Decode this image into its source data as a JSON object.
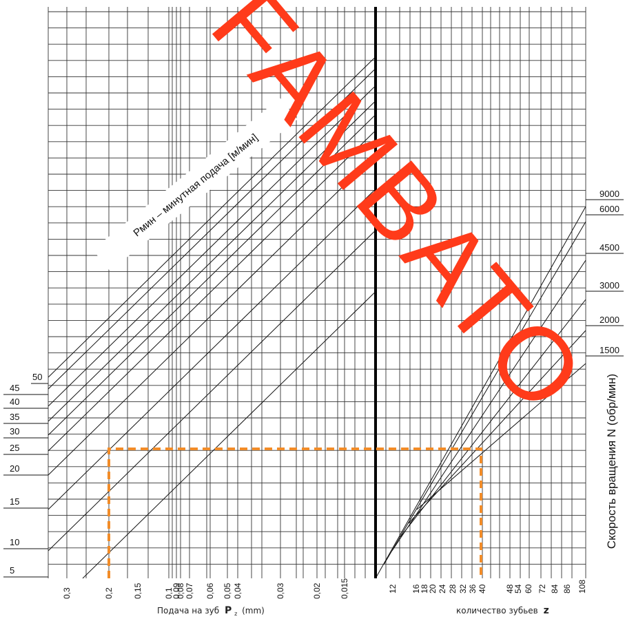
{
  "chart_data": {
    "type": "nomogram",
    "left_scale_label": "Рмин – минутная подача [м/мин]",
    "left_scale_values": [
      "5",
      "10",
      "15",
      "20",
      "25",
      "30",
      "35",
      "40",
      "45",
      "50"
    ],
    "feed_axis": {
      "title_prefix": "Подача на зуб",
      "title_bold": "P",
      "title_sub": "z",
      "title_unit": "(mm)",
      "ticks": [
        "0,3",
        "0,2",
        "0,15",
        "0,1",
        "0,09",
        "0,08",
        "0,07",
        "0,06",
        "0,05",
        "0,04",
        "0,03",
        "0,02",
        "0,015"
      ]
    },
    "teeth_axis": {
      "title": "количество зубьев",
      "title_bold": "z",
      "ticks": [
        "12",
        "16",
        "18",
        "20",
        "24",
        "28",
        "32",
        "36",
        "40",
        "48",
        "54",
        "60",
        "72",
        "84",
        "86",
        "108"
      ]
    },
    "rpm_axis": {
      "title": "Скорость вращения N (обр/мин)",
      "values": [
        "1500",
        "2000",
        "3000",
        "4500",
        "6000",
        "9000"
      ]
    },
    "example_path": {
      "feed_per_tooth": "0,2",
      "teeth": "36",
      "minute_feed_level": "28"
    },
    "watermark": "FAMBATO",
    "colors": {
      "grid": "#333333",
      "divider": "#000000",
      "example": "#f28c28",
      "watermark": "#ff3b1a"
    }
  }
}
